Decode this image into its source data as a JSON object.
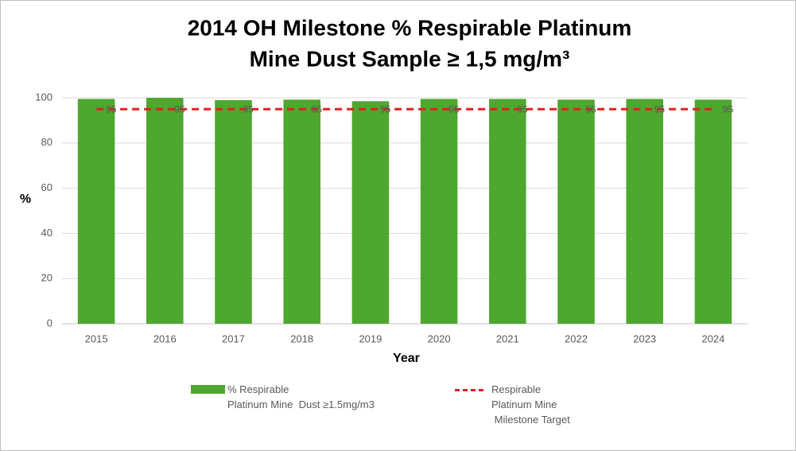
{
  "chart_data": {
    "type": "bar",
    "title": [
      "2014 OH Milestone % Respirable Platinum",
      "Mine Dust Sample ≥ 1,5 mg/m³"
    ],
    "x_label": "Year",
    "y_label": "%",
    "categories": [
      "2015",
      "2016",
      "2017",
      "2018",
      "2019",
      "2020",
      "2021",
      "2022",
      "2023",
      "2024"
    ],
    "series": [
      {
        "name": "% Respirable\nPlatinum Mine  Dust ≥1.5mg/m3",
        "type": "bar",
        "color": "#4ea72e",
        "values": [
          99.5,
          100,
          99,
          99.2,
          98.5,
          99.5,
          99.5,
          99.2,
          99.5,
          99.2
        ]
      },
      {
        "name": "Respirable\nPlatinum Mine\n Milestone Target",
        "type": "line",
        "color": "#e02020",
        "dashed": true,
        "data_labels": true,
        "values": [
          95,
          95,
          95,
          95,
          95,
          95,
          95,
          95,
          95,
          95
        ]
      }
    ],
    "ylim": [
      0,
      100
    ],
    "yticks": [
      0,
      20,
      40,
      60,
      80,
      100
    ],
    "grid": true
  }
}
